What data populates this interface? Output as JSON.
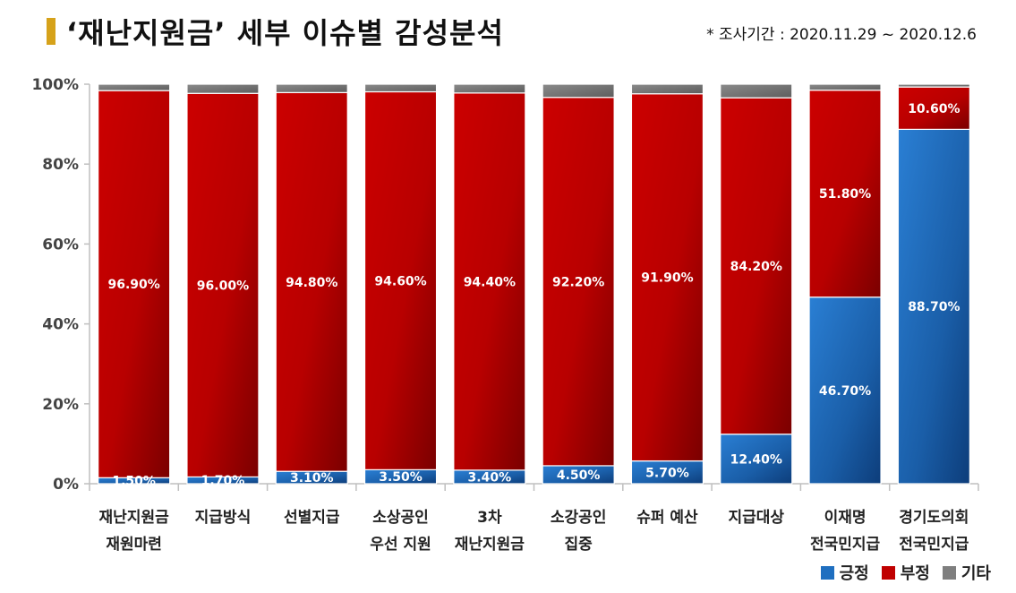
{
  "header": {
    "title": "‘재난지원금’ 세부 이슈별 감성분석",
    "period": "* 조사기간 : 2020.11.29 ~ 2020.12.6"
  },
  "chart_data": {
    "type": "bar",
    "stacked": true,
    "categories": [
      [
        "재난지원금",
        "재원마련"
      ],
      [
        "지급방식"
      ],
      [
        "선별지급"
      ],
      [
        "소상공인",
        "우선 지원"
      ],
      [
        "3차",
        "재난지원금"
      ],
      [
        "소강공인",
        "집중"
      ],
      [
        "슈퍼 예산"
      ],
      [
        "지급대상"
      ],
      [
        "이재명",
        "전국민지급"
      ],
      [
        "경기도의회",
        "전국민지급"
      ]
    ],
    "series": [
      {
        "name": "긍정",
        "color": "#1f6fc0",
        "values": [
          1.5,
          1.7,
          3.1,
          3.5,
          3.4,
          4.5,
          5.7,
          12.4,
          46.7,
          88.7
        ],
        "labels": [
          "1.50%",
          "1.70%",
          "3.10%",
          "3.50%",
          "3.40%",
          "4.50%",
          "5.70%",
          "12.40%",
          "46.70%",
          "88.70%"
        ]
      },
      {
        "name": "부정",
        "color": "#c00000",
        "values": [
          96.9,
          96.0,
          94.8,
          94.6,
          94.4,
          92.2,
          91.9,
          84.2,
          51.8,
          10.6
        ],
        "labels": [
          "96.90%",
          "96.00%",
          "94.80%",
          "94.60%",
          "94.40%",
          "92.20%",
          "91.90%",
          "84.20%",
          "51.80%",
          "10.60%"
        ]
      },
      {
        "name": "기타",
        "color": "#7f7f7f",
        "values": [
          1.6,
          2.3,
          2.1,
          1.9,
          2.2,
          3.3,
          2.4,
          3.4,
          1.5,
          0.7
        ],
        "labels": []
      }
    ],
    "yticks": [
      "0%",
      "20%",
      "40%",
      "60%",
      "80%",
      "100%"
    ],
    "ylim": [
      0,
      100
    ],
    "legend": "bottom-right"
  }
}
